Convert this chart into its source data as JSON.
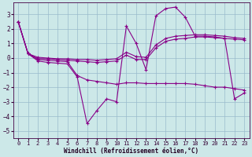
{
  "x": [
    0,
    1,
    2,
    3,
    4,
    5,
    6,
    7,
    8,
    9,
    10,
    11,
    12,
    13,
    14,
    15,
    16,
    17,
    18,
    19,
    20,
    21,
    22,
    23
  ],
  "line1": [
    2.5,
    0.3,
    0.05,
    0.0,
    -0.05,
    -0.05,
    -0.1,
    -0.1,
    -0.15,
    -0.1,
    -0.05,
    0.4,
    0.1,
    0.05,
    0.9,
    1.35,
    1.5,
    1.55,
    1.6,
    1.6,
    1.55,
    1.5,
    1.4,
    1.35
  ],
  "line2": [
    2.5,
    0.3,
    -0.05,
    -0.05,
    -0.1,
    -0.15,
    -0.2,
    -0.25,
    -0.3,
    -0.25,
    -0.2,
    0.2,
    -0.1,
    -0.1,
    0.7,
    1.15,
    1.3,
    1.35,
    1.45,
    1.45,
    1.4,
    1.35,
    1.3,
    1.25
  ],
  "line3": [
    2.5,
    0.3,
    -0.1,
    -0.15,
    -0.2,
    -0.25,
    -1.2,
    -1.5,
    -1.6,
    -1.7,
    -1.8,
    -1.7,
    -1.7,
    -1.75,
    -1.75,
    -1.75,
    -1.75,
    -1.75,
    -1.8,
    -1.9,
    -2.0,
    -2.0,
    -2.1,
    -2.2
  ],
  "line4": [
    2.5,
    0.3,
    -0.2,
    -0.3,
    -0.35,
    -0.4,
    -1.3,
    -4.5,
    -3.6,
    -2.8,
    -3.0,
    2.2,
    1.0,
    -0.8,
    2.9,
    3.4,
    3.5,
    2.8,
    1.5,
    1.5,
    1.45,
    1.35,
    -2.8,
    -2.4
  ],
  "bg_color": "#cce8e8",
  "line_color": "#880088",
  "grid_color": "#99bbcc",
  "xlabel": "Windchill (Refroidissement éolien,°C)",
  "xlim": [
    -0.5,
    23.5
  ],
  "ylim": [
    -5.5,
    3.8
  ],
  "yticks": [
    -5,
    -4,
    -3,
    -2,
    -1,
    0,
    1,
    2,
    3
  ],
  "xticks": [
    0,
    1,
    2,
    3,
    4,
    5,
    6,
    7,
    8,
    9,
    10,
    11,
    12,
    13,
    14,
    15,
    16,
    17,
    18,
    19,
    20,
    21,
    22,
    23
  ]
}
